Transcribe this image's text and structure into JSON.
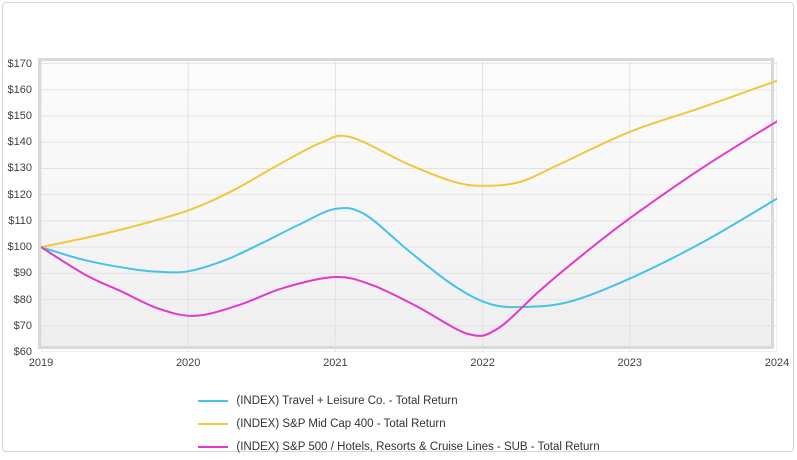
{
  "chart_data": {
    "type": "line",
    "title": "",
    "xlabel": "",
    "ylabel": "",
    "x_ticks": [
      "2019",
      "2020",
      "2021",
      "2022",
      "2023",
      "2024"
    ],
    "x_range": [
      2019,
      2024
    ],
    "y_ticks": [
      "$170",
      "$160",
      "$150",
      "$140",
      "$130",
      "$120",
      "$110",
      "$100",
      "$90",
      "$80",
      "$70",
      "$60"
    ],
    "y_range": [
      60,
      171
    ],
    "y_prefix": "$",
    "grid": true,
    "legend_position": "bottom-center",
    "colors": {
      "grid": "#e2e2e2",
      "plot_border": "#d9d9d9",
      "axis_text": "#404040",
      "legend_text": "#333333"
    },
    "series": [
      {
        "name": "(INDEX) Travel + Leisure Co. - Total Return",
        "color": "#45C3E8",
        "values_at_year_marks": {
          "2019": 100,
          "2020": 91,
          "2021": 115,
          "2022": 78,
          "2023": 88,
          "2024": 119
        },
        "points": [
          [
            2019,
            100
          ],
          [
            2019.3,
            95
          ],
          [
            2019.6,
            91.8
          ],
          [
            2019.8,
            90.6
          ],
          [
            2020,
            90.8
          ],
          [
            2020.25,
            95
          ],
          [
            2020.5,
            101.5
          ],
          [
            2020.75,
            108.5
          ],
          [
            2021,
            114.6
          ],
          [
            2021.2,
            112.5
          ],
          [
            2021.5,
            98.5
          ],
          [
            2021.8,
            85.5
          ],
          [
            2022.05,
            78.3
          ],
          [
            2022.3,
            77.2
          ],
          [
            2022.6,
            79.3
          ],
          [
            2023,
            88
          ],
          [
            2023.5,
            102
          ],
          [
            2024,
            118.5
          ]
        ]
      },
      {
        "name": "(INDEX) S&P Mid Cap 400 - Total Return",
        "color": "#EFC83E",
        "values_at_year_marks": {
          "2019": 100,
          "2020": 114,
          "2021": 142,
          "2022": 123,
          "2023": 144,
          "2024": 163
        },
        "points": [
          [
            2019,
            100
          ],
          [
            2019.3,
            103.5
          ],
          [
            2019.6,
            107.5
          ],
          [
            2020,
            114
          ],
          [
            2020.3,
            121.5
          ],
          [
            2020.6,
            131
          ],
          [
            2020.9,
            139.8
          ],
          [
            2021.1,
            142
          ],
          [
            2021.5,
            131.5
          ],
          [
            2021.8,
            125
          ],
          [
            2022,
            123.4
          ],
          [
            2022.25,
            124.8
          ],
          [
            2022.5,
            131
          ],
          [
            2023,
            144
          ],
          [
            2023.5,
            153.5
          ],
          [
            2024,
            163.5
          ]
        ]
      },
      {
        "name": "(INDEX) S&P 500 / Hotels, Resorts & Cruise Lines - SUB - Total Return",
        "color": "#E238CB",
        "values_at_year_marks": {
          "2019": 100,
          "2020": 74,
          "2021": 89,
          "2022": 67,
          "2023": 111,
          "2024": 148
        },
        "points": [
          [
            2019,
            100
          ],
          [
            2019.3,
            89.5
          ],
          [
            2019.55,
            83
          ],
          [
            2019.8,
            76.5
          ],
          [
            2020.05,
            73.8
          ],
          [
            2020.35,
            78
          ],
          [
            2020.65,
            84.5
          ],
          [
            2021,
            88.6
          ],
          [
            2021.25,
            85.5
          ],
          [
            2021.55,
            77.5
          ],
          [
            2021.9,
            66.9
          ],
          [
            2022.1,
            68.8
          ],
          [
            2022.4,
            84
          ],
          [
            2022.7,
            98
          ],
          [
            2023,
            111
          ],
          [
            2023.5,
            130.5
          ],
          [
            2024,
            148
          ]
        ]
      }
    ]
  }
}
